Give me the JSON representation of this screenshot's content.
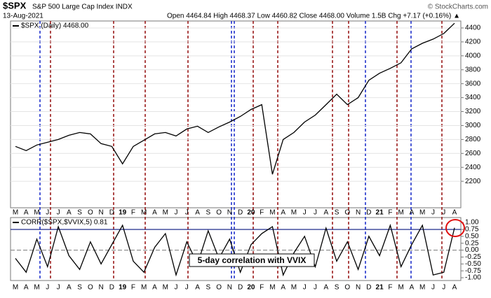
{
  "header": {
    "symbol": "$SPX",
    "name": "S&P 500 Large Cap Index INDX",
    "credit": "© StockCharts.com",
    "date": "13-Aug-2021",
    "quote": "Open 4464.84  High 4468.37  Low 4460.82  Close 4468.00  Volume 1.5B  Chg +7.17 (+0.16%) ▲"
  },
  "annotation": "5-day correlation with VVIX",
  "chart_data": [
    {
      "type": "line",
      "legend": "$SPX (Daily) 4468.00",
      "color": "#000000",
      "grid": true,
      "categories": [
        "M",
        "A",
        "M",
        "J",
        "J",
        "A",
        "S",
        "O",
        "N",
        "D",
        "19",
        "F",
        "M",
        "A",
        "M",
        "J",
        "J",
        "A",
        "S",
        "O",
        "N",
        "D",
        "20",
        "F",
        "M",
        "A",
        "M",
        "J",
        "J",
        "A",
        "S",
        "O",
        "N",
        "D",
        "21",
        "F",
        "M",
        "A",
        "M",
        "J",
        "J",
        "A"
      ],
      "values": [
        2700,
        2640,
        2720,
        2760,
        2800,
        2860,
        2900,
        2880,
        2740,
        2700,
        2450,
        2700,
        2790,
        2880,
        2900,
        2850,
        2950,
        2990,
        2900,
        2980,
        3050,
        3130,
        3230,
        3300,
        2300,
        2800,
        2900,
        3050,
        3150,
        3300,
        3450,
        3300,
        3400,
        3650,
        3750,
        3820,
        3900,
        4100,
        4180,
        4240,
        4320,
        4468
      ],
      "ylim": [
        1820,
        4500
      ],
      "yticks": [
        2200,
        2400,
        2600,
        2800,
        3000,
        3200,
        3400,
        3600,
        3800,
        4000,
        4200,
        4400
      ]
    },
    {
      "type": "line",
      "legend": "CORR($SPX,$VVIX,5) 0.81",
      "color": "#000000",
      "categories": [
        "M",
        "A",
        "M",
        "J",
        "J",
        "A",
        "S",
        "O",
        "N",
        "D",
        "19",
        "F",
        "M",
        "A",
        "M",
        "J",
        "J",
        "A",
        "S",
        "O",
        "N",
        "D",
        "20",
        "F",
        "M",
        "A",
        "M",
        "J",
        "J",
        "A",
        "S",
        "O",
        "N",
        "D",
        "21",
        "F",
        "M",
        "A",
        "M",
        "J",
        "J",
        "A"
      ],
      "values": [
        -0.3,
        -0.8,
        0.4,
        -0.6,
        0.85,
        -0.2,
        -0.7,
        0.3,
        -0.5,
        0.2,
        0.9,
        -0.4,
        -0.8,
        0.1,
        0.6,
        -0.9,
        0.3,
        -0.5,
        0.7,
        -0.3,
        0.4,
        -0.8,
        0.2,
        0.6,
        0.85,
        -0.9,
        -0.1,
        0.5,
        -0.6,
        0.8,
        -0.4,
        0.3,
        -0.7,
        0.5,
        -0.2,
        0.9,
        -0.6,
        0.2,
        0.9,
        -0.9,
        -0.8,
        0.81
      ],
      "ylim": [
        -1.1,
        1.18
      ],
      "yticks": [
        {
          "value": 1,
          "label": "1.00"
        },
        {
          "value": 0.75,
          "label": "0.75"
        },
        {
          "value": 0.5,
          "label": "0.50"
        },
        {
          "value": 0.25,
          "label": "0.25"
        },
        {
          "value": 0,
          "label": "0.00"
        },
        {
          "value": -0.25,
          "label": "-0.25"
        },
        {
          "value": -0.5,
          "label": "-0.50"
        },
        {
          "value": -0.75,
          "label": "-0.75"
        },
        {
          "value": -1,
          "label": "-1.00"
        }
      ],
      "hlines": [
        {
          "value": 0.75,
          "color": "#1f2a8c",
          "dashed": false
        },
        {
          "value": 0,
          "color": "#888888",
          "dashed": true
        }
      ]
    }
  ]
}
